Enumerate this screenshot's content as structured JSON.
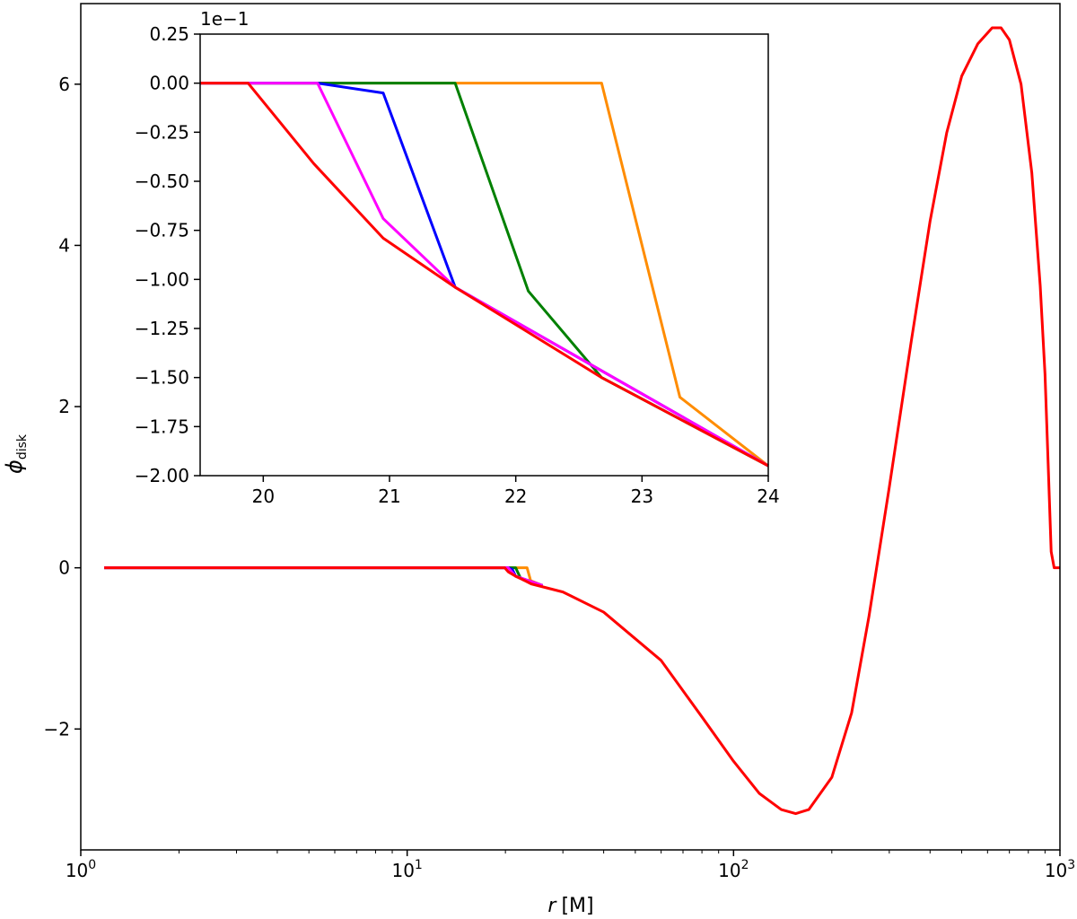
{
  "chart_data": [
    {
      "id": "main",
      "type": "line",
      "title": "",
      "xlabel": "r",
      "xlabel_unit": "[M]",
      "ylabel": "ϕ",
      "ylabel_sub": "disk",
      "xscale": "log",
      "xlim": [
        1,
        1000
      ],
      "ylim": [
        -3.5,
        7.0
      ],
      "grid": false,
      "legend": "none",
      "x_ticks": [
        {
          "value": 1,
          "base": "10",
          "exp": "0"
        },
        {
          "value": 10,
          "base": "10",
          "exp": "1"
        },
        {
          "value": 100,
          "base": "10",
          "exp": "2"
        },
        {
          "value": 1000,
          "base": "10",
          "exp": "3"
        }
      ],
      "y_ticks": [
        {
          "value": -2,
          "label": "−2"
        },
        {
          "value": 0,
          "label": "0"
        },
        {
          "value": 2,
          "label": "2"
        },
        {
          "value": 4,
          "label": "4"
        },
        {
          "value": 6,
          "label": "6"
        }
      ],
      "series": [
        {
          "color": "#ff8c00",
          "points": [
            [
              1.18,
              0
            ],
            [
              20,
              0
            ],
            [
              23.3,
              0
            ],
            [
              23.9,
              -0.16
            ],
            [
              26,
              -0.22
            ]
          ]
        },
        {
          "color": "#008000",
          "points": [
            [
              1.18,
              0
            ],
            [
              20,
              0
            ],
            [
              21.5,
              0
            ],
            [
              22.2,
              -0.12
            ],
            [
              22.7,
              -0.15
            ],
            [
              26,
              -0.22
            ]
          ]
        },
        {
          "color": "#0000ff",
          "points": [
            [
              1.18,
              0
            ],
            [
              20,
              0
            ],
            [
              20.4,
              0
            ],
            [
              21.0,
              -0.02
            ],
            [
              21.5,
              -0.105
            ],
            [
              26,
              -0.22
            ]
          ]
        },
        {
          "color": "#ff00ff",
          "points": [
            [
              1.18,
              0
            ],
            [
              20,
              0
            ],
            [
              20.4,
              0
            ],
            [
              21.0,
              -0.06
            ],
            [
              21.5,
              -0.105
            ],
            [
              26,
              -0.22
            ]
          ]
        },
        {
          "color": "#ff0000",
          "points": [
            [
              1.18,
              0
            ],
            [
              19.9,
              0
            ],
            [
              20.4,
              -0.05
            ],
            [
              21.5,
              -0.105
            ],
            [
              22.7,
              -0.15
            ],
            [
              24,
              -0.2
            ],
            [
              30,
              -0.3
            ],
            [
              40,
              -0.55
            ],
            [
              60,
              -1.15
            ],
            [
              80,
              -1.85
            ],
            [
              100,
              -2.4
            ],
            [
              120,
              -2.8
            ],
            [
              140,
              -3.0
            ],
            [
              155,
              -3.05
            ],
            [
              170,
              -3.0
            ],
            [
              200,
              -2.6
            ],
            [
              230,
              -1.8
            ],
            [
              260,
              -0.6
            ],
            [
              300,
              1.0
            ],
            [
              350,
              2.8
            ],
            [
              400,
              4.3
            ],
            [
              450,
              5.4
            ],
            [
              500,
              6.1
            ],
            [
              560,
              6.5
            ],
            [
              620,
              6.7
            ],
            [
              660,
              6.7
            ],
            [
              700,
              6.55
            ],
            [
              760,
              6.0
            ],
            [
              820,
              4.9
            ],
            [
              870,
              3.5
            ],
            [
              900,
              2.4
            ],
            [
              920,
              1.3
            ],
            [
              940,
              0.2
            ],
            [
              960,
              0
            ],
            [
              1000,
              0
            ]
          ]
        }
      ]
    },
    {
      "id": "inset",
      "type": "line",
      "title": "",
      "xlim": [
        19.5,
        24
      ],
      "ylim": [
        -2.0,
        0.25
      ],
      "offset_text": "1e−1",
      "grid": false,
      "legend": "none",
      "x_ticks": [
        {
          "value": 20,
          "label": "20"
        },
        {
          "value": 21,
          "label": "21"
        },
        {
          "value": 22,
          "label": "22"
        },
        {
          "value": 23,
          "label": "23"
        },
        {
          "value": 24,
          "label": "24"
        }
      ],
      "y_ticks": [
        {
          "value": 0.25,
          "label": "0.25"
        },
        {
          "value": 0.0,
          "label": "0.00"
        },
        {
          "value": -0.25,
          "label": "−0.25"
        },
        {
          "value": -0.5,
          "label": "−0.50"
        },
        {
          "value": -0.75,
          "label": "−0.75"
        },
        {
          "value": -1.0,
          "label": "−1.00"
        },
        {
          "value": -1.25,
          "label": "−1.25"
        },
        {
          "value": -1.5,
          "label": "−1.50"
        },
        {
          "value": -1.75,
          "label": "−1.75"
        },
        {
          "value": -2.0,
          "label": "−2.00"
        }
      ],
      "series": [
        {
          "color": "#ff8c00",
          "points": [
            [
              19.5,
              0
            ],
            [
              22.68,
              0
            ],
            [
              23.3,
              -1.6
            ],
            [
              24,
              -1.95
            ]
          ]
        },
        {
          "color": "#008000",
          "points": [
            [
              19.5,
              0
            ],
            [
              21.52,
              0
            ],
            [
              22.1,
              -1.06
            ],
            [
              22.68,
              -1.5
            ],
            [
              24,
              -1.95
            ]
          ]
        },
        {
          "color": "#0000ff",
          "points": [
            [
              19.5,
              0
            ],
            [
              20.43,
              0
            ],
            [
              20.95,
              -0.05
            ],
            [
              21.52,
              -1.04
            ],
            [
              24,
              -1.95
            ]
          ]
        },
        {
          "color": "#ff00ff",
          "points": [
            [
              19.5,
              0
            ],
            [
              20.43,
              0
            ],
            [
              20.95,
              -0.69
            ],
            [
              21.52,
              -1.04
            ],
            [
              24,
              -1.95
            ]
          ]
        },
        {
          "color": "#ff0000",
          "points": [
            [
              19.5,
              0
            ],
            [
              19.88,
              0
            ],
            [
              20.4,
              -0.41
            ],
            [
              20.95,
              -0.79
            ],
            [
              21.52,
              -1.04
            ],
            [
              22.1,
              -1.27
            ],
            [
              22.68,
              -1.5
            ],
            [
              24,
              -1.95
            ]
          ]
        }
      ]
    }
  ]
}
